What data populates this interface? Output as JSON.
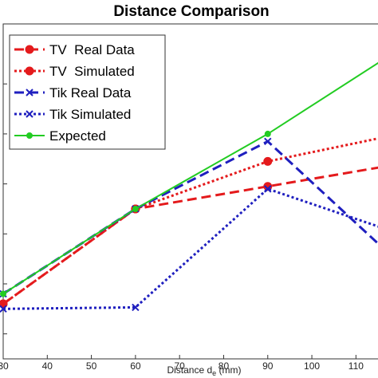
{
  "chart_data": {
    "type": "line",
    "title": "Distance Comparison",
    "xlabel": "Distance d",
    "xlabel_subscript": "e",
    "xlabel_unit": " (mm)",
    "ylabel": "",
    "xlim": [
      30,
      115
    ],
    "ylim": [
      0.5,
      7.2
    ],
    "x_ticks": [
      30,
      40,
      50,
      60,
      70,
      80,
      90,
      100,
      110
    ],
    "x_tick_labels": [
      "30",
      "40",
      "50",
      "60",
      "70",
      "80",
      "90",
      "100",
      "110"
    ],
    "y_ticks": [
      1,
      2,
      3,
      4,
      5,
      6
    ],
    "grid": false,
    "legend": "top-left",
    "series": [
      {
        "name": "TV  Real Data",
        "color": "#e41a1c",
        "dash": "dashed",
        "marker": "circle",
        "x": [
          30,
          60,
          90,
          120
        ],
        "y": [
          1.6,
          3.5,
          3.95,
          4.4
        ]
      },
      {
        "name": "TV  Simulated",
        "color": "#e41a1c",
        "dash": "dotted",
        "marker": "circle",
        "x": [
          30,
          60,
          90,
          120
        ],
        "y": [
          1.6,
          3.5,
          4.45,
          5.0
        ]
      },
      {
        "name": "Tik Real Data",
        "color": "#1f1fbf",
        "dash": "dashed",
        "marker": "x",
        "x": [
          30,
          60,
          90,
          120
        ],
        "y": [
          1.8,
          3.5,
          4.85,
          2.4
        ]
      },
      {
        "name": "Tik Simulated",
        "color": "#1f1fbf",
        "dash": "dotted",
        "marker": "x",
        "x": [
          30,
          60,
          90,
          120
        ],
        "y": [
          1.5,
          1.53,
          3.9,
          3.0
        ]
      },
      {
        "name": "Expected",
        "color": "#22cc22",
        "dash": "solid",
        "marker": "dot",
        "x": [
          30,
          60,
          90,
          120
        ],
        "y": [
          1.8,
          3.5,
          5.0,
          6.7
        ]
      }
    ]
  }
}
